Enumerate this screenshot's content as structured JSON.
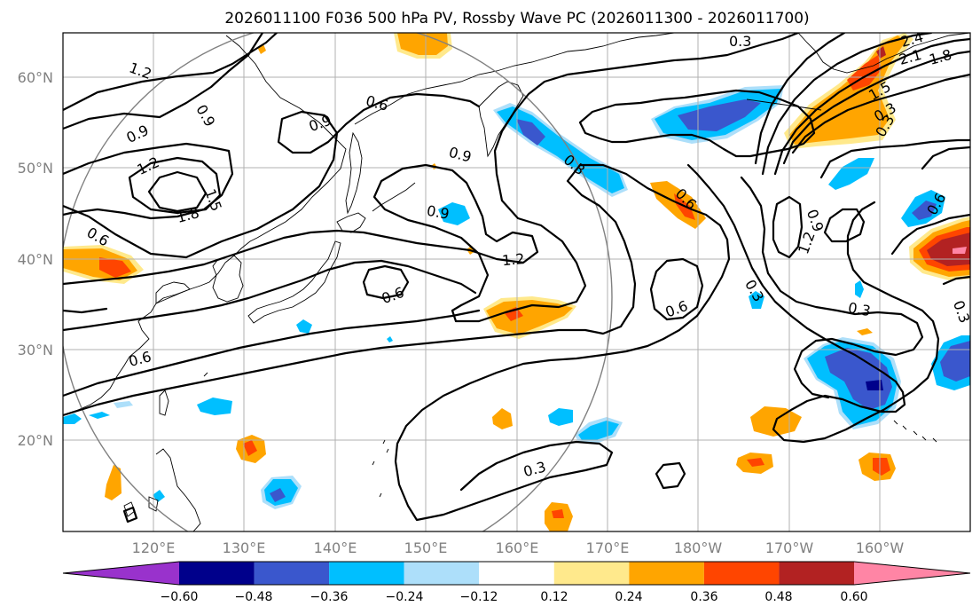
{
  "title": "2026011100 F036 500 hPa PV, Rossby Wave PC (2026011300 - 2026011700)",
  "lat_labels": [
    "60°N",
    "50°N",
    "40°N",
    "30°N",
    "20°N"
  ],
  "lon_labels": [
    "120°E",
    "130°E",
    "140°E",
    "150°E",
    "160°E",
    "170°E",
    "180°W",
    "170°W",
    "160°W"
  ],
  "contour_labels": [
    "1.2",
    "0.9",
    "0.9",
    "1.2",
    "1.8",
    "1.5",
    "0.6",
    "0.6",
    "0.9",
    "0.6",
    "0.9",
    "0.9",
    "0.3",
    "1.2",
    "0.3",
    "0.6",
    "0.3",
    "0.6",
    "0.9",
    "1.2",
    "0.3",
    "0.3",
    "0.6",
    "0.3",
    "0.6",
    "0.3",
    "2.4",
    "2.1",
    "1.8",
    "1.5",
    "0.3"
  ],
  "colorbar": {
    "ticks": [
      "−0.60",
      "−0.48",
      "−0.36",
      "−0.24",
      "−0.12",
      "0.12",
      "0.24",
      "0.36",
      "0.48",
      "0.60"
    ],
    "colors": [
      "#9932CC",
      "#00008B",
      "#3A57CD",
      "#00BFFF",
      "#ADDFFA",
      "#FFFFFF",
      "#FFE98C",
      "#FFA500",
      "#FF4500",
      "#B22222",
      "#FF85A5"
    ]
  },
  "colors": {
    "neg_light": "#ADDFFA",
    "neg_mid": "#00BFFF",
    "neg_strong": "#3A57CD",
    "neg_max": "#00008B",
    "pos_light": "#FFE98C",
    "pos_mid": "#FFA500",
    "pos_strong": "#FF4500",
    "pos_max": "#B22222",
    "pos_top": "#FF85A5",
    "grid": "#B0B0B0",
    "axis_label": "#808080"
  }
}
